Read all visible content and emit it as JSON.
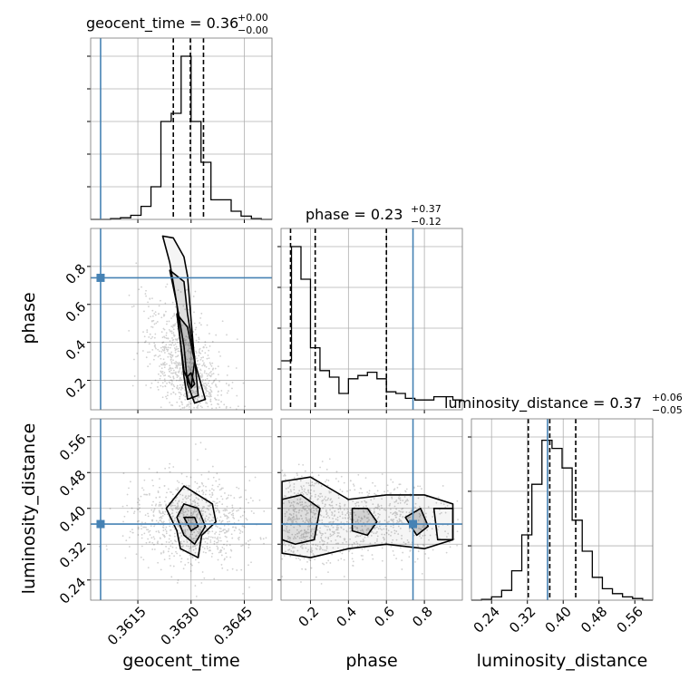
{
  "colors": {
    "truth": "#4682b4",
    "hist": "#000000",
    "grid": "#b0b0b0",
    "contour": "#000000",
    "scatter": "#000000"
  },
  "parameters": [
    "geocent_time",
    "phase",
    "luminosity_distance"
  ],
  "titles": {
    "geocent_time": {
      "main": "geocent_time = 0.36",
      "sup": "+0.00",
      "sub": "−0.00"
    },
    "phase": {
      "main": "phase = 0.23",
      "sup": "+0.37",
      "sub": "−0.12"
    },
    "luminosity_distance": {
      "main": "luminosity_distance = 0.37",
      "sup": "+0.06",
      "sub": "−0.05"
    }
  },
  "axis_labels": {
    "geocent_time": "geocent_time",
    "phase": "phase",
    "luminosity_distance": "luminosity_distance"
  },
  "chart_data": {
    "type": "corner",
    "grid": true,
    "truths": {
      "geocent_time": 0.36045,
      "phase": 0.74,
      "luminosity_distance": 0.365
    },
    "ranges": {
      "geocent_time": [
        0.36017,
        0.36528
      ],
      "phase": [
        0.045,
        1.0
      ],
      "luminosity_distance": [
        0.195,
        0.6
      ]
    },
    "ticks": {
      "geocent_time": {
        "values": [
          0.3615,
          0.363,
          0.3645
        ],
        "labels": [
          "0.3615",
          "0.3630",
          "0.3645"
        ]
      },
      "phase": {
        "values": [
          0.2,
          0.4,
          0.6,
          0.8
        ],
        "labels": [
          "0.2",
          "0.4",
          "0.6",
          "0.8"
        ]
      },
      "luminosity_distance": {
        "values": [
          0.24,
          0.32,
          0.4,
          0.48,
          0.56
        ],
        "labels": [
          "0.24",
          "0.32",
          "0.40",
          "0.48",
          "0.56"
        ]
      }
    },
    "hist_yticks": {
      "geocent_time": [
        0.2,
        0.4,
        0.6,
        0.8,
        1.0
      ],
      "phase": [
        0.25,
        0.5,
        0.75,
        1.0
      ],
      "luminosity_distance": [
        0.333,
        0.667,
        1.0
      ]
    },
    "histograms": {
      "geocent_time": {
        "edges": [
          0.36017,
          0.36045,
          0.36073,
          0.36101,
          0.3613,
          0.36159,
          0.36187,
          0.36215,
          0.36244,
          0.36272,
          0.363,
          0.36328,
          0.36356,
          0.36385,
          0.36413,
          0.36441,
          0.3647,
          0.36498,
          0.36528
        ],
        "counts": [
          0,
          0,
          0.005,
          0.01,
          0.025,
          0.08,
          0.2,
          0.6,
          0.65,
          1.0,
          0.6,
          0.35,
          0.12,
          0.12,
          0.05,
          0.02,
          0.005,
          0
        ]
      },
      "phase": {
        "edges": [
          0.045,
          0.1,
          0.15,
          0.2,
          0.25,
          0.3,
          0.35,
          0.4,
          0.45,
          0.5,
          0.55,
          0.6,
          0.65,
          0.7,
          0.75,
          0.8,
          0.85,
          0.9,
          0.95,
          1.0
        ],
        "counts": [
          0.3,
          1.0,
          0.8,
          0.38,
          0.24,
          0.2,
          0.1,
          0.19,
          0.21,
          0.23,
          0.19,
          0.11,
          0.1,
          0.07,
          0.06,
          0.06,
          0.08,
          0.08,
          0.06
        ]
      },
      "luminosity_distance": {
        "edges": [
          0.195,
          0.2175,
          0.24,
          0.2625,
          0.285,
          0.3075,
          0.33,
          0.3525,
          0.375,
          0.3975,
          0.42,
          0.4425,
          0.465,
          0.4875,
          0.51,
          0.5325,
          0.555,
          0.5775,
          0.6
        ],
        "counts": [
          0,
          0.005,
          0.02,
          0.06,
          0.18,
          0.4,
          0.71,
          0.98,
          0.93,
          0.81,
          0.49,
          0.3,
          0.14,
          0.07,
          0.04,
          0.02,
          0.01,
          0
        ]
      }
    },
    "quantiles": {
      "geocent_time": [
        0.3625,
        0.36298,
        0.36335
      ],
      "phase": [
        0.095,
        0.225,
        0.6
      ],
      "luminosity_distance": [
        0.322,
        0.37,
        0.428
      ]
    },
    "contours": {
      "phase_vs_geocent_time": [
        [
          [
            0.3622,
            0.96
          ],
          [
            0.3624,
            0.82
          ],
          [
            0.3626,
            0.6
          ],
          [
            0.3628,
            0.38
          ],
          [
            0.3629,
            0.18
          ],
          [
            0.3631,
            0.08
          ],
          [
            0.3634,
            0.1
          ],
          [
            0.3631,
            0.3
          ],
          [
            0.363,
            0.52
          ],
          [
            0.3629,
            0.75
          ],
          [
            0.3628,
            0.85
          ],
          [
            0.3625,
            0.95
          ]
        ],
        [
          [
            0.3624,
            0.78
          ],
          [
            0.3626,
            0.6
          ],
          [
            0.3627,
            0.4
          ],
          [
            0.3628,
            0.22
          ],
          [
            0.3629,
            0.1
          ],
          [
            0.3632,
            0.12
          ],
          [
            0.3631,
            0.32
          ],
          [
            0.3629,
            0.55
          ],
          [
            0.3628,
            0.72
          ]
        ],
        [
          [
            0.3626,
            0.55
          ],
          [
            0.3627,
            0.4
          ],
          [
            0.3628,
            0.25
          ],
          [
            0.363,
            0.16
          ],
          [
            0.3631,
            0.3
          ],
          [
            0.3629,
            0.48
          ]
        ],
        [
          [
            0.3629,
            0.22
          ],
          [
            0.363,
            0.16
          ],
          [
            0.3631,
            0.18
          ],
          [
            0.363,
            0.24
          ]
        ]
      ],
      "luminosity_distance_vs_geocent_time": [
        [
          [
            0.3623,
            0.4
          ],
          [
            0.3626,
            0.35
          ],
          [
            0.3627,
            0.31
          ],
          [
            0.3632,
            0.29
          ],
          [
            0.3633,
            0.34
          ],
          [
            0.3637,
            0.37
          ],
          [
            0.3636,
            0.41
          ],
          [
            0.3632,
            0.43
          ],
          [
            0.3628,
            0.45
          ],
          [
            0.3626,
            0.43
          ]
        ],
        [
          [
            0.3626,
            0.38
          ],
          [
            0.3628,
            0.34
          ],
          [
            0.3631,
            0.32
          ],
          [
            0.3634,
            0.36
          ],
          [
            0.3632,
            0.4
          ],
          [
            0.3628,
            0.41
          ]
        ],
        [
          [
            0.3628,
            0.38
          ],
          [
            0.363,
            0.35
          ],
          [
            0.3632,
            0.36
          ],
          [
            0.3631,
            0.38
          ]
        ]
      ],
      "luminosity_distance_vs_phase": [
        [
          [
            0.05,
            0.46
          ],
          [
            0.2,
            0.47
          ],
          [
            0.4,
            0.42
          ],
          [
            0.6,
            0.43
          ],
          [
            0.8,
            0.43
          ],
          [
            0.95,
            0.41
          ],
          [
            0.95,
            0.33
          ],
          [
            0.8,
            0.31
          ],
          [
            0.6,
            0.32
          ],
          [
            0.4,
            0.31
          ],
          [
            0.2,
            0.29
          ],
          [
            0.05,
            0.3
          ]
        ],
        [
          [
            0.05,
            0.42
          ],
          [
            0.15,
            0.43
          ],
          [
            0.25,
            0.4
          ],
          [
            0.22,
            0.33
          ],
          [
            0.12,
            0.32
          ],
          [
            0.05,
            0.33
          ]
        ],
        [
          [
            0.42,
            0.4
          ],
          [
            0.5,
            0.4
          ],
          [
            0.55,
            0.37
          ],
          [
            0.5,
            0.34
          ],
          [
            0.42,
            0.35
          ]
        ],
        [
          [
            0.7,
            0.38
          ],
          [
            0.78,
            0.4
          ],
          [
            0.82,
            0.36
          ],
          [
            0.76,
            0.34
          ]
        ],
        [
          [
            0.85,
            0.4
          ],
          [
            0.95,
            0.4
          ],
          [
            0.95,
            0.33
          ],
          [
            0.87,
            0.33
          ]
        ]
      ]
    }
  }
}
